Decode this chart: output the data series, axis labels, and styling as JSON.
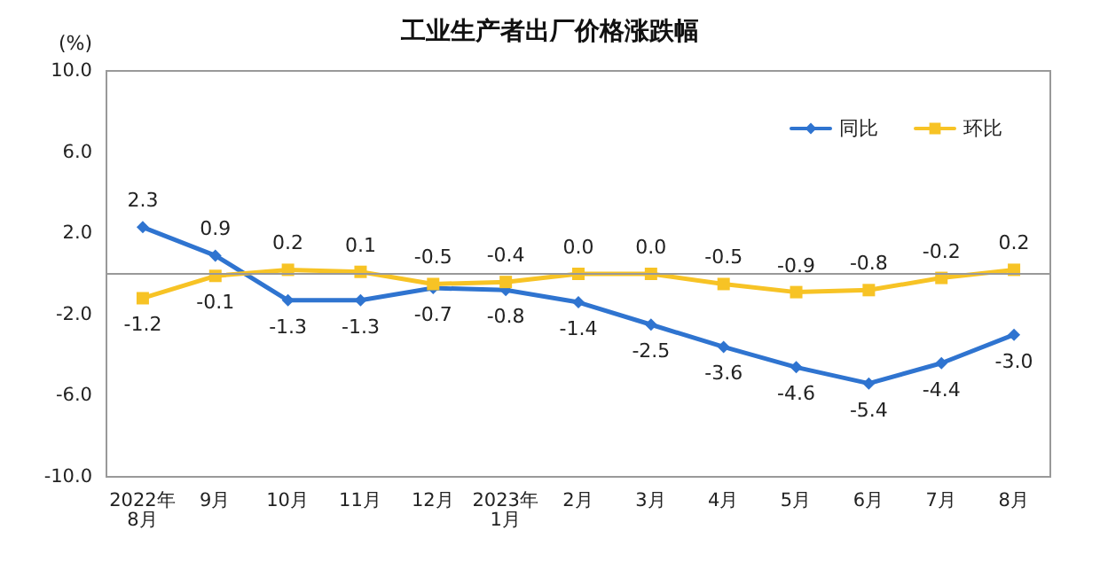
{
  "chart_data": {
    "type": "line",
    "title": "工业生产者出厂价格涨跌幅",
    "ylabel": "(%)",
    "categories": [
      "2022年\n8月",
      "9月",
      "10月",
      "11月",
      "12月",
      "2023年\n1月",
      "2月",
      "3月",
      "4月",
      "5月",
      "6月",
      "7月",
      "8月"
    ],
    "series": [
      {
        "name": "同比",
        "color": "#2f74d0",
        "marker": "diamond",
        "values": [
          2.3,
          0.9,
          -1.3,
          -1.3,
          -0.7,
          -0.8,
          -1.4,
          -2.5,
          -3.6,
          -4.6,
          -5.4,
          -4.4,
          -3.0
        ],
        "value_labels": [
          "2.3",
          "0.9",
          "-1.3",
          "-1.3",
          "-0.7",
          "-0.8",
          "-1.4",
          "-2.5",
          "-3.6",
          "-4.6",
          "-5.4",
          "-4.4",
          "-3.0"
        ]
      },
      {
        "name": "环比",
        "color": "#f7c325",
        "marker": "square",
        "values": [
          -1.2,
          -0.1,
          0.2,
          0.1,
          -0.5,
          -0.4,
          0.0,
          0.0,
          -0.5,
          -0.9,
          -0.8,
          -0.2,
          0.2
        ],
        "value_labels": [
          "-1.2",
          "-0.1",
          "0.2",
          "0.1",
          "-0.5",
          "-0.4",
          "0.0",
          "0.0",
          "-0.5",
          "-0.9",
          "-0.8",
          "-0.2",
          "0.2"
        ]
      }
    ],
    "ylim": [
      -10,
      10
    ],
    "yticks": [
      {
        "value": -10,
        "label": "-10.0"
      },
      {
        "value": -6,
        "label": "-6.0"
      },
      {
        "value": -2,
        "label": "-2.0"
      },
      {
        "value": 2,
        "label": "2.0"
      },
      {
        "value": 6,
        "label": "6.0"
      },
      {
        "value": 10,
        "label": "10.0"
      }
    ],
    "ref_lines": [
      {
        "axis": "y",
        "value": 0,
        "color": "#999999"
      }
    ],
    "legend": "top right",
    "grid": false,
    "line_style": "solid"
  }
}
